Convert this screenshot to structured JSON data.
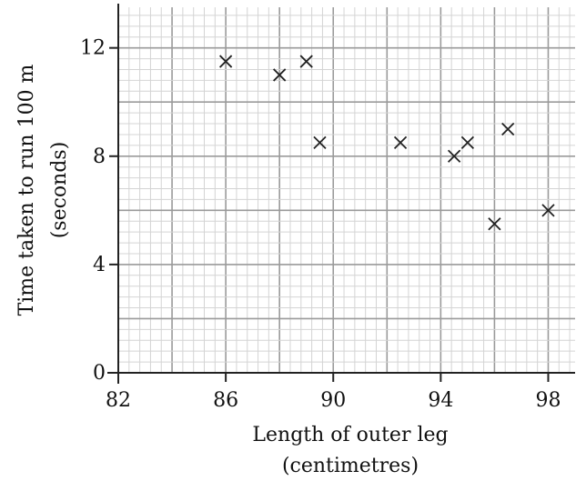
{
  "chart_data": {
    "type": "scatter",
    "title": "",
    "xlabel": [
      "Length of outer leg",
      "(centimetres)"
    ],
    "ylabel": [
      "Time taken to run 100 m",
      "(seconds)"
    ],
    "xlim": [
      82,
      99
    ],
    "ylim": [
      0,
      13.5
    ],
    "x_ticks": [
      82,
      86,
      90,
      94,
      98
    ],
    "y_ticks": [
      0,
      4,
      8,
      12
    ],
    "grid": {
      "major_x": 2,
      "minor_x": 0.4,
      "major_y": 2,
      "minor_y": 0.4
    },
    "marker": "cross",
    "points": [
      {
        "x": 86,
        "y": 11.5
      },
      {
        "x": 88,
        "y": 11
      },
      {
        "x": 89,
        "y": 11.5
      },
      {
        "x": 89.5,
        "y": 8.5
      },
      {
        "x": 92.5,
        "y": 8.5
      },
      {
        "x": 94.5,
        "y": 8
      },
      {
        "x": 95,
        "y": 8.5
      },
      {
        "x": 96.5,
        "y": 9
      },
      {
        "x": 96,
        "y": 5.5
      },
      {
        "x": 98,
        "y": 6
      }
    ]
  },
  "colors": {
    "minor_grid": "#d4d4d4",
    "major_grid": "#9a9a9a",
    "axis": "#222222",
    "marker": "#222222"
  }
}
